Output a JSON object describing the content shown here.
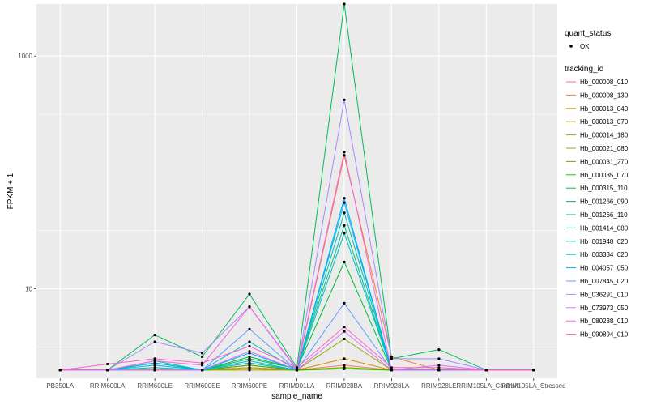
{
  "chart_data": {
    "type": "line",
    "xlabel": "sample_name",
    "ylabel": "FPKM + 1",
    "yscale": "log10",
    "ylim": [
      1.7,
      2800
    ],
    "yticks": [
      10,
      1000
    ],
    "ytick_labels": [
      "10",
      "1000"
    ],
    "categories": [
      "PB350LA",
      "RRIM600LA",
      "RRIM600LE",
      "RRIM600SE",
      "RRIM600PE",
      "RRIM901LA",
      "RRIM928BA",
      "RRIM928LA",
      "RRIM928LE",
      "RRIM105LA_Control",
      "RRIM105LA_Stressed"
    ],
    "legend": {
      "shape_title": "quant_status",
      "shape_label": "OK",
      "color_title": "tracking_id"
    },
    "series": [
      {
        "name": "Hb_000008_010",
        "color": "#F8766D",
        "values": [
          2,
          2,
          2,
          2,
          2.1,
          2,
          2.2,
          2,
          2,
          2,
          2
        ]
      },
      {
        "name": "Hb_000008_130",
        "color": "#EC823C",
        "values": [
          2,
          2,
          2,
          2,
          2.1,
          2,
          140,
          2.6,
          2,
          2,
          2
        ]
      },
      {
        "name": "Hb_000013_040",
        "color": "#DD8D00",
        "values": [
          2,
          2,
          2,
          2,
          2.2,
          2,
          2.5,
          2,
          2,
          2,
          2
        ]
      },
      {
        "name": "Hb_000013_070",
        "color": "#CA9700",
        "values": [
          2,
          2,
          2,
          2,
          2.05,
          2,
          2.05,
          2,
          2,
          2,
          2
        ]
      },
      {
        "name": "Hb_000014_180",
        "color": "#B3A000",
        "values": [
          2,
          2,
          2,
          2,
          2,
          2,
          2.1,
          2,
          2,
          2,
          2
        ]
      },
      {
        "name": "Hb_000021_080",
        "color": "#97A900",
        "values": [
          2,
          2,
          2,
          2,
          2.3,
          2,
          3.7,
          2,
          2,
          2,
          2
        ]
      },
      {
        "name": "Hb_000031_270",
        "color": "#71B000",
        "values": [
          2,
          2,
          2,
          2,
          2.05,
          2,
          2.1,
          2,
          2,
          2,
          2
        ]
      },
      {
        "name": "Hb_000035_070",
        "color": "#2FB600",
        "values": [
          2,
          2,
          2,
          2,
          2.2,
          2,
          2.05,
          2,
          2,
          2,
          2
        ]
      },
      {
        "name": "Hb_000315_110",
        "color": "#00BA38",
        "values": [
          2,
          2,
          2.3,
          2,
          2.6,
          2.05,
          17,
          2,
          2,
          2,
          2
        ]
      },
      {
        "name": "Hb_001266_090",
        "color": "#00BD5C",
        "values": [
          2,
          2,
          4,
          2.6,
          9,
          2.1,
          2800,
          2.5,
          3,
          2,
          2
        ]
      },
      {
        "name": "Hb_001266_110",
        "color": "#00C085",
        "values": [
          2,
          2,
          2.3,
          2,
          2.5,
          2.05,
          35,
          2,
          2,
          2,
          2
        ]
      },
      {
        "name": "Hb_001414_080",
        "color": "#00C1A7",
        "values": [
          2,
          2,
          2.1,
          2,
          2.4,
          2,
          45,
          2,
          2,
          2,
          2
        ]
      },
      {
        "name": "Hb_001948_020",
        "color": "#00BFC4",
        "values": [
          2,
          2,
          2.4,
          2,
          3.5,
          2,
          30,
          2,
          2,
          2,
          2
        ]
      },
      {
        "name": "Hb_003334_020",
        "color": "#00B8E5",
        "values": [
          2,
          2,
          2.2,
          2,
          2.3,
          2,
          55,
          2,
          2,
          2,
          2
        ]
      },
      {
        "name": "Hb_004057_050",
        "color": "#00ABFD",
        "values": [
          2,
          2,
          2.3,
          2,
          2.8,
          2,
          60,
          2,
          2,
          2,
          2
        ]
      },
      {
        "name": "Hb_007845_020",
        "color": "#619CFF",
        "values": [
          2,
          2,
          2,
          2,
          4.5,
          2,
          7.5,
          2,
          2,
          2,
          2
        ]
      },
      {
        "name": "Hb_036291_010",
        "color": "#A58AFF",
        "values": [
          2,
          2,
          3.5,
          2.8,
          7,
          2,
          420,
          2.5,
          2.5,
          2,
          2
        ]
      },
      {
        "name": "Hb_073973_050",
        "color": "#DB72FB",
        "values": [
          2,
          2,
          2,
          2,
          2.9,
          2,
          4.3,
          2,
          2.2,
          2,
          2
        ]
      },
      {
        "name": "Hb_080238_010",
        "color": "#F564E3",
        "values": [
          2,
          2,
          2.4,
          2.2,
          7,
          2.05,
          150,
          2,
          2,
          2,
          2
        ]
      },
      {
        "name": "Hb_090894_010",
        "color": "#FF61C3",
        "values": [
          2,
          2.25,
          2.5,
          2.3,
          3.2,
          2.1,
          4.7,
          2.1,
          2.1,
          2,
          2
        ]
      }
    ]
  }
}
